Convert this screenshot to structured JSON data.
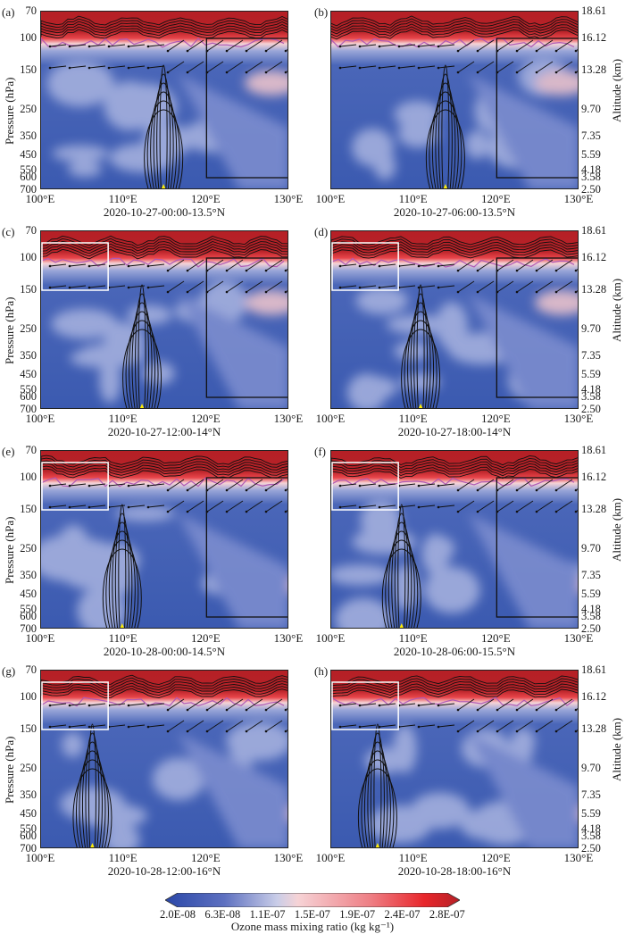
{
  "chart_data": {
    "type": "heatmap",
    "description": "Longitude-pressure cross sections of ozone mass mixing ratio (shading) with overlaid black contours, wind vectors, magenta tropopause line, and boxes",
    "xlabel": "Longitude",
    "ylabel": "Pressure (hPa)",
    "y2label": "Altitude (km)",
    "xticks": [
      "100°E",
      "110°E",
      "120°E",
      "130°E"
    ],
    "xlim": [
      100,
      130
    ],
    "yticks_pressure": [
      70,
      100,
      150,
      250,
      350,
      450,
      550,
      600,
      700
    ],
    "yticks_altitude": [
      18.61,
      16.12,
      13.28,
      9.7,
      7.35,
      5.59,
      4.18,
      3.58,
      2.5
    ],
    "ylim_pressure": [
      700,
      70
    ],
    "panels": [
      {
        "label": "(a)",
        "caption": "2020-10-27-00:00-13.5°N",
        "convection_lon": 114.8,
        "black_box": true,
        "white_box": false
      },
      {
        "label": "(b)",
        "caption": "2020-10-27-06:00-13.5°N",
        "convection_lon": 113.8,
        "black_box": true,
        "white_box": false
      },
      {
        "label": "(c)",
        "caption": "2020-10-27-12:00-14°N",
        "convection_lon": 112.2,
        "black_box": true,
        "white_box": true
      },
      {
        "label": "(d)",
        "caption": "2020-10-27-18:00-14°N",
        "convection_lon": 110.8,
        "black_box": true,
        "white_box": true
      },
      {
        "label": "(e)",
        "caption": "2020-10-28-00:00-14.5°N",
        "convection_lon": 109.8,
        "black_box": true,
        "white_box": true
      },
      {
        "label": "(f)",
        "caption": "2020-10-28-06:00-15.5°N",
        "convection_lon": 108.5,
        "black_box": true,
        "white_box": true
      },
      {
        "label": "(g)",
        "caption": "2020-10-28-12:00-16°N",
        "convection_lon": 106.2,
        "black_box": false,
        "white_box": true
      },
      {
        "label": "(h)",
        "caption": "2020-10-28-18:00-16°N",
        "convection_lon": 105.6,
        "black_box": false,
        "white_box": true
      }
    ],
    "colorbar": {
      "label": "Ozone mass mixing ratio (kg kg⁻¹)",
      "ticks": [
        "2.0E-08",
        "6.3E-08",
        "1.1E-07",
        "1.5E-07",
        "1.9E-07",
        "2.4E-07",
        "2.8E-07"
      ],
      "range": [
        2e-08,
        2.8e-07
      ],
      "colors": [
        "#2a47a8",
        "#c9cde8",
        "#f3c7c9",
        "#e8262b",
        "#b52026"
      ],
      "extend": "both"
    }
  },
  "axis": {
    "ylabel": "Pressure (hPa)",
    "y2label": "Altitude (km)",
    "pressure_ticks": [
      "70",
      "100",
      "150",
      "250",
      "350",
      "450",
      "550",
      "600",
      "700"
    ],
    "altitude_ticks": [
      "18.61",
      "16.12",
      "13.28",
      "9.70",
      "7.35",
      "5.59",
      "4.18",
      "3.58",
      "2.50"
    ],
    "xticks": [
      "100°E",
      "110°E",
      "120°E",
      "130°E"
    ]
  },
  "panels": [
    {
      "label": "(a)",
      "caption": "2020-10-27-00:00-13.5°N"
    },
    {
      "label": "(b)",
      "caption": "2020-10-27-06:00-13.5°N"
    },
    {
      "label": "(c)",
      "caption": "2020-10-27-12:00-14°N"
    },
    {
      "label": "(d)",
      "caption": "2020-10-27-18:00-14°N"
    },
    {
      "label": "(e)",
      "caption": "2020-10-28-00:00-14.5°N"
    },
    {
      "label": "(f)",
      "caption": "2020-10-28-06:00-15.5°N"
    },
    {
      "label": "(g)",
      "caption": "2020-10-28-12:00-16°N"
    },
    {
      "label": "(h)",
      "caption": "2020-10-28-18:00-16°N"
    }
  ],
  "colorbar": {
    "label": "Ozone mass mixing ratio (kg kg⁻¹)",
    "ticks": [
      "2.0E-08",
      "6.3E-08",
      "1.1E-07",
      "1.5E-07",
      "1.9E-07",
      "2.4E-07",
      "2.8E-07"
    ]
  }
}
